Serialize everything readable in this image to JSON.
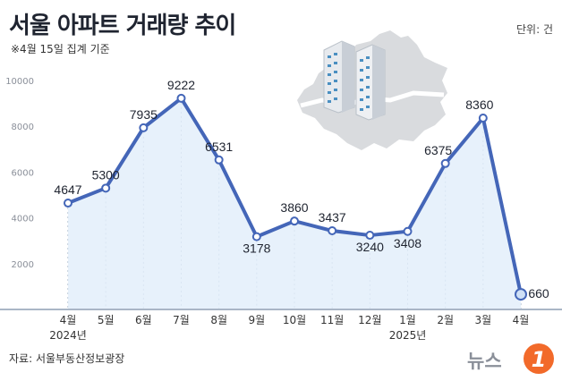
{
  "header": {
    "title": "서울 아파트 거래량 추이",
    "subtitle": "※4월 15일 집계 기준",
    "unit": "단위: 건"
  },
  "footer": {
    "source": "자료: 서울부동산정보광장",
    "brand": "뉴스",
    "brand_number": "1"
  },
  "colors": {
    "line": "#4466b8",
    "area": "#e3eefa",
    "axis": "#aab6c6",
    "grid": "#9fb0c4",
    "brand": "#f26a2a"
  },
  "chart_data": {
    "type": "area",
    "title": "서울 아파트 거래량 추이",
    "categories": [
      "4월",
      "5월",
      "6월",
      "7월",
      "8월",
      "9월",
      "10월",
      "11월",
      "12월",
      "1월",
      "2월",
      "3월",
      "4월"
    ],
    "year_labels": [
      {
        "index": 0,
        "label": "2024년"
      },
      {
        "index": 9,
        "label": "2025년"
      }
    ],
    "series": [
      {
        "name": "거래량",
        "values": [
          4647,
          5300,
          7935,
          9222,
          6531,
          3178,
          3860,
          3437,
          3240,
          3408,
          6375,
          8360,
          660
        ]
      }
    ],
    "yticks": [
      2000,
      4000,
      6000,
      8000,
      10000
    ],
    "ylim": [
      0,
      10000
    ],
    "xlabel": "",
    "ylabel": ""
  }
}
